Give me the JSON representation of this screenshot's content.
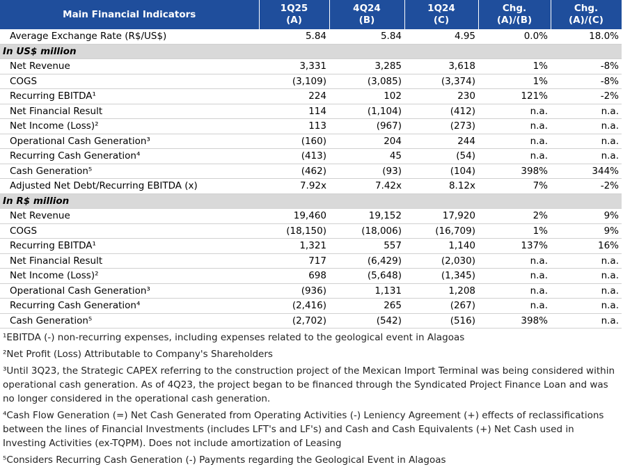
{
  "table": {
    "header": {
      "title": "Main Financial Indicators",
      "columns": [
        [
          "1Q25",
          "(A)"
        ],
        [
          "4Q24",
          "(B)"
        ],
        [
          "1Q24",
          "(C)"
        ],
        [
          "Chg.",
          "(A)/(B)"
        ],
        [
          "Chg.",
          "(A)/(C)"
        ]
      ]
    },
    "rows": [
      {
        "label": "Average Exchange Rate (R$/US$)",
        "cells": [
          "5.84",
          "5.84",
          "4.95",
          "0.0%",
          "18.0%"
        ]
      },
      {
        "section": "In US$ million"
      },
      {
        "label": "Net Revenue",
        "cells": [
          "3,331",
          "3,285",
          "3,618",
          "1%",
          "-8%"
        ]
      },
      {
        "label": "COGS",
        "cells": [
          "(3,109)",
          "(3,085)",
          "(3,374)",
          "1%",
          "-8%"
        ]
      },
      {
        "label": "Recurring EBITDA¹",
        "cells": [
          "224",
          "102",
          "230",
          "121%",
          "-2%"
        ]
      },
      {
        "label": "Net Financial Result",
        "cells": [
          "114",
          "(1,104)",
          "(412)",
          "n.a.",
          "n.a."
        ]
      },
      {
        "label": "Net Income (Loss)²",
        "cells": [
          "113",
          "(967)",
          "(273)",
          "n.a.",
          "n.a."
        ]
      },
      {
        "label": "Operational Cash Generation³",
        "cells": [
          "(160)",
          "204",
          "244",
          "n.a.",
          "n.a."
        ]
      },
      {
        "label": "Recurring Cash Generation⁴",
        "cells": [
          "(413)",
          "45",
          "(54)",
          "n.a.",
          "n.a."
        ]
      },
      {
        "label": "Cash Generation⁵",
        "cells": [
          "(462)",
          "(93)",
          "(104)",
          "398%",
          "344%"
        ]
      },
      {
        "label": "Adjusted Net Debt/Recurring EBITDA (x)",
        "cells": [
          "7.92x",
          "7.42x",
          "8.12x",
          "7%",
          "-2%"
        ]
      },
      {
        "section": "In R$ million"
      },
      {
        "label": "Net Revenue",
        "cells": [
          "19,460",
          "19,152",
          "17,920",
          "2%",
          "9%"
        ]
      },
      {
        "label": "COGS",
        "cells": [
          "(18,150)",
          "(18,006)",
          "(16,709)",
          "1%",
          "9%"
        ]
      },
      {
        "label": "Recurring EBITDA¹",
        "cells": [
          "1,321",
          "557",
          "1,140",
          "137%",
          "16%"
        ]
      },
      {
        "label": "Net Financial Result",
        "cells": [
          "717",
          "(6,429)",
          "(2,030)",
          "n.a.",
          "n.a."
        ]
      },
      {
        "label": "Net Income (Loss)²",
        "cells": [
          "698",
          "(5,648)",
          "(1,345)",
          "n.a.",
          "n.a."
        ]
      },
      {
        "label": "Operational Cash Generation³",
        "cells": [
          "(936)",
          "1,131",
          "1,208",
          "n.a.",
          "n.a."
        ]
      },
      {
        "label": "Recurring Cash Generation⁴",
        "cells": [
          "(2,416)",
          "265",
          "(267)",
          "n.a.",
          "n.a."
        ]
      },
      {
        "label": "Cash Generation⁵",
        "cells": [
          "(2,702)",
          "(542)",
          "(516)",
          "398%",
          "n.a."
        ]
      }
    ]
  },
  "footnotes": [
    "¹EBITDA (-) non-recurring expenses, including expenses related to the geological event in Alagoas",
    "²Net Profit (Loss) Attributable to Company's Shareholders",
    "³Until 3Q23, the Strategic CAPEX referring to the construction project of the Mexican Import Terminal was being considered within operational cash generation. As of 4Q23, the project began to be financed through the Syndicated Project Finance Loan and was no longer considered in the operational cash generation.",
    "⁴Cash Flow Generation (=) Net Cash Generated from Operating Activities (-) Leniency Agreement (+) effects of reclassifications between the lines of Financial Investments (includes LFT's and LF's) and Cash and Cash Equivalents (+) Net Cash used in Investing Activities (ex-TQPM). Does not include amortization of Leasing",
    "⁵Considers Recurring Cash Generation (-) Payments regarding the Geological Event in Alagoas"
  ]
}
